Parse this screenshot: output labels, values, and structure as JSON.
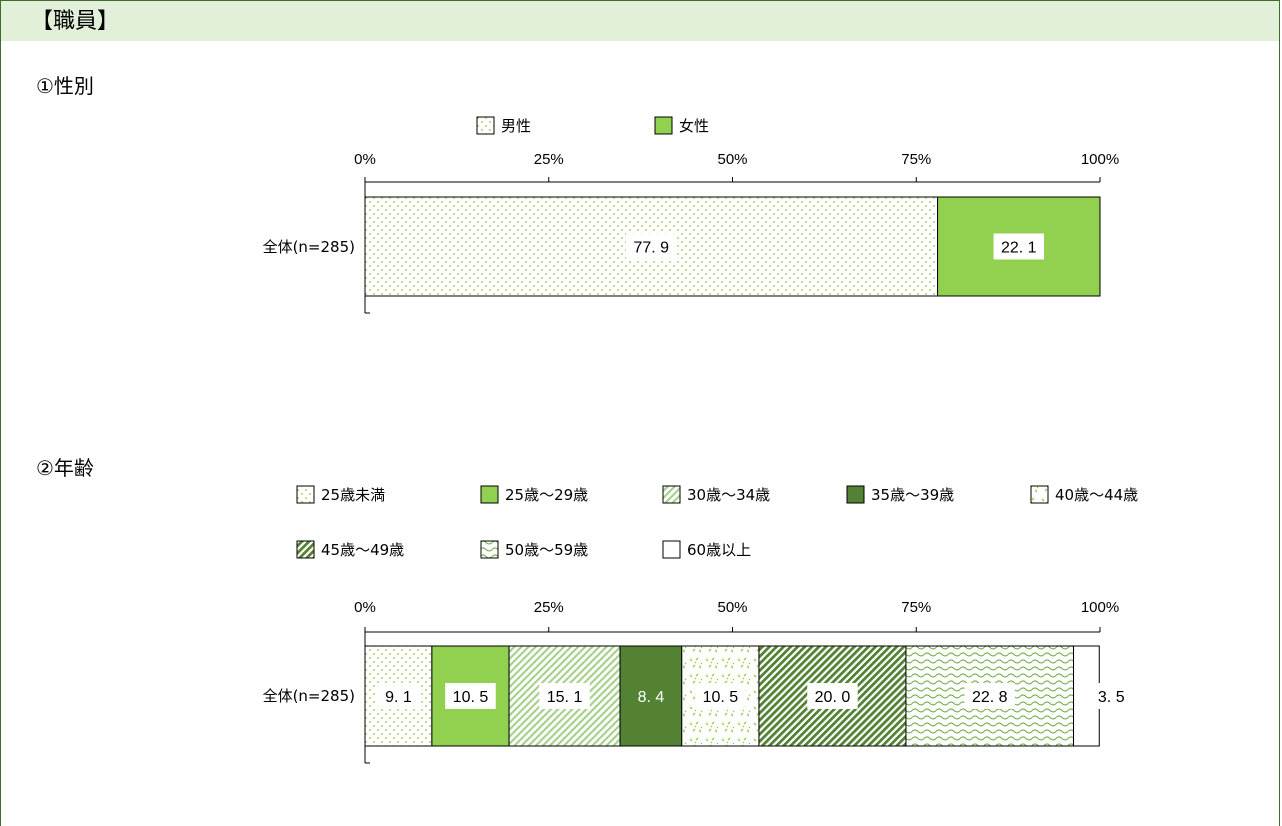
{
  "header": {
    "title": "【職員】"
  },
  "sections": [
    {
      "title": "①性別"
    },
    {
      "title": "②年齢"
    }
  ],
  "chart_data": [
    {
      "type": "bar",
      "orientation": "horizontal-stacked-100",
      "categories": [
        "全体(n=285)"
      ],
      "xtick_labels": [
        "0%",
        "25%",
        "50%",
        "75%",
        "100%"
      ],
      "xlim": [
        0,
        100
      ],
      "legend_placement": "top",
      "series": [
        {
          "name": "男性",
          "values": [
            77.9
          ],
          "label": "77. 9",
          "pattern": "dots",
          "color": "#8fc74f"
        },
        {
          "name": "女性",
          "values": [
            22.1
          ],
          "label": "22. 1",
          "pattern": "solid",
          "color": "#92d050"
        }
      ]
    },
    {
      "type": "bar",
      "orientation": "horizontal-stacked-100",
      "categories": [
        "全体(n=285)"
      ],
      "xtick_labels": [
        "0%",
        "25%",
        "50%",
        "75%",
        "100%"
      ],
      "xlim": [
        0,
        100
      ],
      "legend_placement": "top",
      "series": [
        {
          "name": "25歳未満",
          "values": [
            9.1
          ],
          "label": "9. 1",
          "pattern": "dots",
          "color": "#8fc74f"
        },
        {
          "name": "25歳～29歳",
          "values": [
            10.5
          ],
          "label": "10. 5",
          "pattern": "solid",
          "color": "#92d050"
        },
        {
          "name": "30歳～34歳",
          "values": [
            15.1
          ],
          "label": "15. 1",
          "pattern": "diag-light",
          "color": "#a9d18e"
        },
        {
          "name": "35歳～39歳",
          "values": [
            8.4
          ],
          "label": "8. 4",
          "pattern": "solid",
          "color": "#548235"
        },
        {
          "name": "40歳～44歳",
          "values": [
            10.5
          ],
          "label": "10. 5",
          "pattern": "confetti",
          "color": "#92d050"
        },
        {
          "name": "45歳～49歳",
          "values": [
            20.0
          ],
          "label": "20. 0",
          "pattern": "diag-dark",
          "color": "#548235"
        },
        {
          "name": "50歳～59歳",
          "values": [
            22.8
          ],
          "label": "22. 8",
          "pattern": "wave",
          "color": "#70ad47"
        },
        {
          "name": "60歳以上",
          "values": [
            3.5
          ],
          "label": "3. 5",
          "pattern": "none",
          "color": "#ffffff"
        }
      ]
    }
  ]
}
